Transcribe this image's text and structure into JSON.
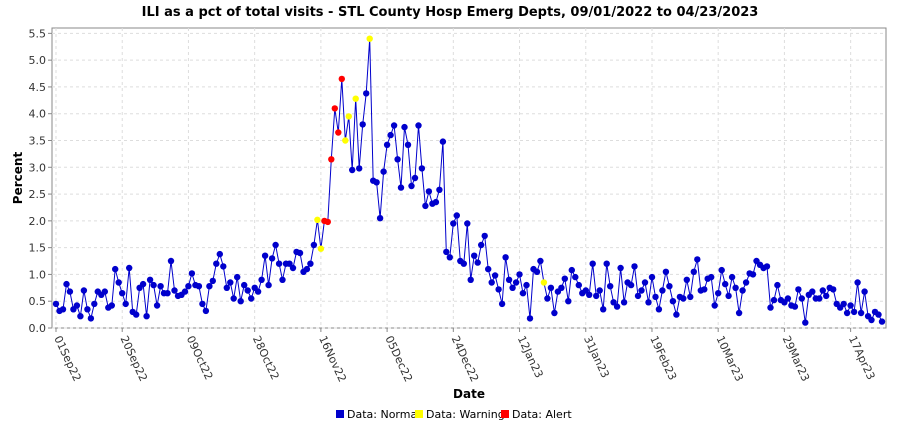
{
  "chart_data": {
    "type": "line",
    "title": "ILI as a pct of total visits - STL County Hosp Emerg Depts, 09/01/2022 to 04/23/2023",
    "xlabel": "Date",
    "ylabel": "Percent",
    "ylim": [
      0,
      5.6
    ],
    "y_ticks": [
      "0.0",
      "0.5",
      "1.0",
      "1.5",
      "2.0",
      "2.5",
      "3.0",
      "3.5",
      "4.0",
      "4.5",
      "5.0",
      "5.5"
    ],
    "x_start": "2022-09-01",
    "x_end": "2023-04-23",
    "x_tick_labels": [
      "01Sep22",
      "20Sep22",
      "09Oct22",
      "28Oct22",
      "16Nov22",
      "05Dec22",
      "24Dec22",
      "12Jan23",
      "31Jan23",
      "19Feb23",
      "10Mar23",
      "29Mar23",
      "17Apr23"
    ],
    "x_tick_day_offsets": [
      0,
      19,
      38,
      57,
      76,
      95,
      114,
      133,
      152,
      171,
      190,
      209,
      228
    ],
    "grid": true,
    "legend": [
      "Data: Normal",
      "Data: Warning",
      "Data: Alert"
    ],
    "colors": {
      "line": "#0000cc",
      "Normal": "#0000cc",
      "Warning": "#ffff00",
      "Alert": "#ff0000",
      "grid": "#dddddd"
    },
    "values": [
      0.45,
      0.32,
      0.35,
      0.82,
      0.68,
      0.35,
      0.42,
      0.22,
      0.7,
      0.35,
      0.18,
      0.45,
      0.68,
      0.62,
      0.68,
      0.38,
      0.42,
      1.1,
      0.85,
      0.65,
      0.45,
      1.12,
      0.3,
      0.25,
      0.75,
      0.82,
      0.22,
      0.9,
      0.8,
      0.42,
      0.78,
      0.65,
      0.65,
      1.25,
      0.7,
      0.6,
      0.62,
      0.68,
      0.78,
      1.02,
      0.8,
      0.78,
      0.45,
      0.32,
      0.78,
      0.88,
      1.2,
      1.38,
      1.15,
      0.75,
      0.85,
      0.55,
      0.95,
      0.5,
      0.8,
      0.7,
      0.55,
      0.75,
      0.68,
      0.9,
      1.35,
      0.8,
      1.3,
      1.55,
      1.2,
      0.9,
      1.2,
      1.2,
      1.12,
      1.42,
      1.4,
      1.05,
      1.1,
      1.2,
      1.55,
      2.02,
      1.48,
      2.0,
      1.98,
      3.15,
      4.1,
      3.65,
      4.65,
      3.5,
      3.95,
      2.95,
      4.28,
      2.98,
      3.8,
      4.38,
      5.4,
      2.75,
      2.72,
      2.05,
      2.92,
      3.42,
      3.6,
      3.78,
      3.15,
      2.62,
      3.75,
      3.42,
      2.65,
      2.8,
      3.78,
      2.98,
      2.28,
      2.55,
      2.32,
      2.35,
      2.58,
      3.48,
      1.42,
      1.32,
      1.95,
      2.1,
      1.25,
      1.2,
      1.95,
      0.9,
      1.35,
      1.22,
      1.55,
      1.72,
      1.1,
      0.85,
      0.98,
      0.72,
      0.45,
      1.32,
      0.9,
      0.75,
      0.85,
      1.0,
      0.65,
      0.8,
      0.18,
      1.1,
      1.05,
      1.25,
      0.85,
      0.55,
      0.75,
      0.28,
      0.68,
      0.75,
      0.92,
      0.5,
      1.08,
      0.95,
      0.8,
      0.65,
      0.7,
      0.62,
      1.2,
      0.6,
      0.7,
      0.35,
      1.2,
      0.78,
      0.48,
      0.4,
      1.12,
      0.48,
      0.85,
      0.8,
      1.15,
      0.6,
      0.7,
      0.85,
      0.48,
      0.95,
      0.58,
      0.35,
      0.7,
      1.05,
      0.78,
      0.5,
      0.25,
      0.58,
      0.55,
      0.9,
      0.58,
      1.05,
      1.28,
      0.7,
      0.72,
      0.92,
      0.95,
      0.42,
      0.65,
      1.08,
      0.82,
      0.6,
      0.95,
      0.75,
      0.28,
      0.7,
      0.85,
      1.02,
      1.0,
      1.25,
      1.18,
      1.12,
      1.15,
      0.38,
      0.52,
      0.8,
      0.52,
      0.48,
      0.55,
      0.42,
      0.4,
      0.72,
      0.55,
      0.1,
      0.62,
      0.68,
      0.55,
      0.55,
      0.7,
      0.6,
      0.75,
      0.72,
      0.45,
      0.38,
      0.45,
      0.28,
      0.42,
      0.3,
      0.85,
      0.28,
      0.68,
      0.22,
      0.15,
      0.3,
      0.25,
      0.12
    ],
    "status": {
      "75": "Warning",
      "76": "Warning",
      "77": "Alert",
      "78": "Alert",
      "79": "Alert",
      "80": "Alert",
      "81": "Alert",
      "82": "Alert",
      "83": "Warning",
      "84": "Warning",
      "86": "Warning",
      "90": "Warning",
      "140": "Warning"
    }
  }
}
